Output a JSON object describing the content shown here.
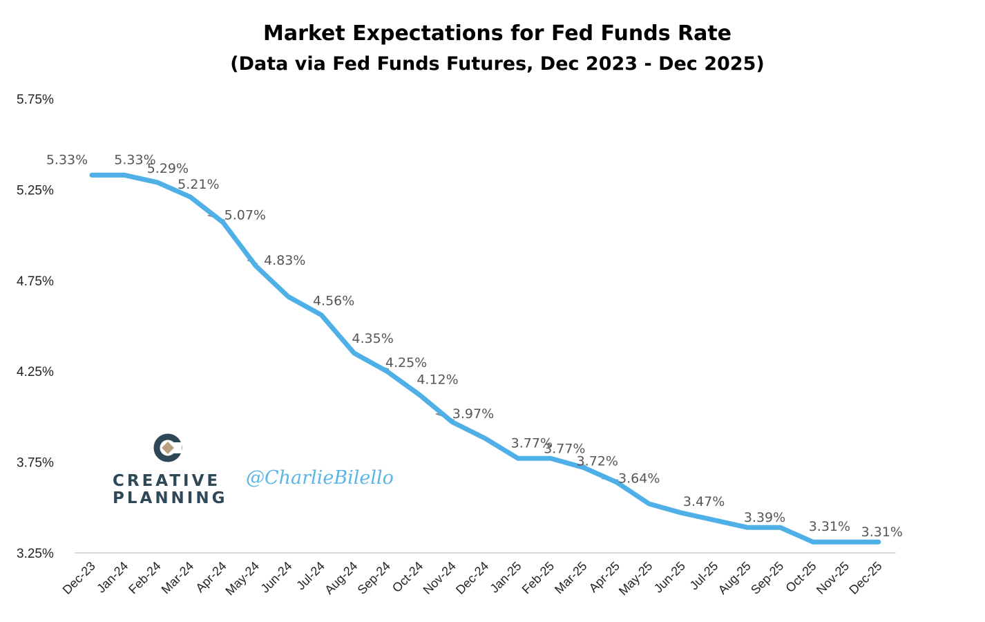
{
  "chart_data": {
    "type": "line",
    "title": "Market Expectations for Fed Funds Rate",
    "subtitle": "(Data via Fed Funds Futures, Dec 2023 - Dec 2025)",
    "xlabel": "",
    "ylabel": "",
    "categories": [
      "Dec-23",
      "Jan-24",
      "Feb-24",
      "Mar-24",
      "Apr-24",
      "May-24",
      "Jun-24",
      "Jul-24",
      "Aug-24",
      "Sep-24",
      "Oct-24",
      "Nov-24",
      "Dec-24",
      "Jan-25",
      "Feb-25",
      "Mar-25",
      "Apr-25",
      "May-25",
      "Jun-25",
      "Jul-25",
      "Aug-25",
      "Sep-25",
      "Oct-25",
      "Nov-25",
      "Dec-25"
    ],
    "series": [
      {
        "values": [
          5.33,
          5.33,
          5.29,
          5.21,
          5.07,
          4.83,
          4.66,
          4.56,
          4.35,
          4.25,
          4.12,
          3.97,
          3.88,
          3.77,
          3.77,
          3.72,
          3.64,
          3.52,
          3.47,
          3.43,
          3.39,
          3.39,
          3.31,
          3.31,
          3.31
        ],
        "data_labels": [
          "5.33%",
          "5.33%",
          "5.29%",
          "5.21%",
          "5.07%",
          "4.83%",
          "",
          "4.56%",
          "4.35%",
          "4.25%",
          "4.12%",
          "3.97%",
          "",
          "3.77%",
          "3.77%",
          "3.72%",
          "3.64%",
          "",
          "3.47%",
          "",
          "3.39%",
          "",
          "3.31%",
          "",
          "3.31%"
        ],
        "color": "#4fb0e8"
      }
    ],
    "y_ticks": [
      "5.75%",
      "5.25%",
      "4.75%",
      "4.25%",
      "3.75%",
      "3.25%"
    ],
    "y_tick_values": [
      5.75,
      5.25,
      4.75,
      4.25,
      3.75,
      3.25
    ],
    "ylim": [
      3.25,
      5.75
    ],
    "grid": false,
    "legend": "none"
  },
  "branding": {
    "logo_line1": "CREATIVE",
    "logo_line2": "PLANNING",
    "handle": "@CharlieBilello",
    "logo_color": "#2f4858",
    "logo_accent": "#b8a17d",
    "handle_color": "#5ab4e5"
  }
}
